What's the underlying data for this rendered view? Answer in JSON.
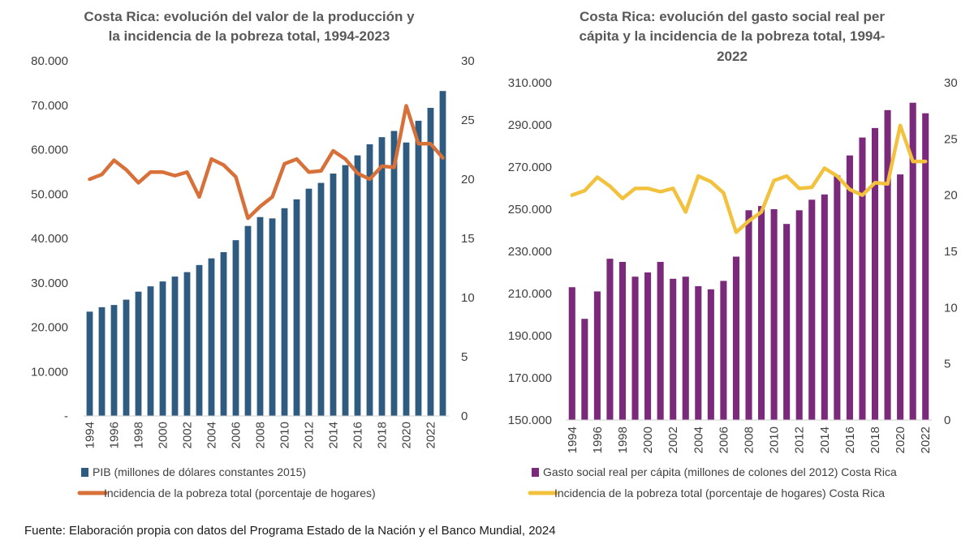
{
  "colors": {
    "gdp_bar": "#2E5B7F",
    "poverty_line_1": "#D8703A",
    "social_bar": "#7B2A7B",
    "poverty_line_2": "#F2C13D",
    "text": "#404040",
    "title": "#595959"
  },
  "chart_data": [
    {
      "type": "bar",
      "title": [
        "Costa Rica: evolución del valor de la producción y",
        "la incidencia de la pobreza total, 1994-2023"
      ],
      "x": [
        1994,
        1995,
        1996,
        1997,
        1998,
        1999,
        2000,
        2001,
        2002,
        2003,
        2004,
        2005,
        2006,
        2007,
        2008,
        2009,
        2010,
        2011,
        2012,
        2013,
        2014,
        2015,
        2016,
        2017,
        2018,
        2019,
        2020,
        2021,
        2022,
        2023
      ],
      "x_tick_labels": [
        "1994",
        "1996",
        "1998",
        "2000",
        "2002",
        "2004",
        "2006",
        "2008",
        "2010",
        "2012",
        "2014",
        "2016",
        "2018",
        "2020",
        "2022"
      ],
      "ylim": [
        0,
        80000
      ],
      "y_tick_labels": [
        "-",
        "10.000",
        "20.000",
        "30.000",
        "40.000",
        "50.000",
        "60.000",
        "70.000",
        "80.000"
      ],
      "y2lim": [
        0,
        30
      ],
      "y2_tick_labels": [
        "0",
        "5",
        "10",
        "15",
        "20",
        "25",
        "30"
      ],
      "legend_position": "bottom",
      "series": [
        {
          "name": "PIB (millones de dólares constantes 2015)",
          "kind": "bar",
          "axis": "left",
          "values": [
            23500,
            24500,
            25000,
            26200,
            28000,
            29200,
            30300,
            31400,
            32400,
            34000,
            35500,
            36900,
            39600,
            42800,
            44800,
            44500,
            46800,
            48800,
            51200,
            52500,
            54600,
            56500,
            58700,
            61200,
            62800,
            64200,
            61600,
            66500,
            69400,
            73200
          ]
        },
        {
          "name": "Incidencia de la pobreza total (porcentaje de hogares)",
          "kind": "line",
          "axis": "right",
          "values": [
            20.0,
            20.4,
            21.6,
            20.8,
            19.7,
            20.6,
            20.6,
            20.3,
            20.6,
            18.5,
            21.7,
            21.2,
            20.2,
            16.7,
            17.7,
            18.5,
            21.3,
            21.7,
            20.6,
            20.7,
            22.4,
            21.7,
            20.5,
            20.0,
            21.1,
            21.0,
            26.2,
            23.0,
            23.0,
            21.8
          ]
        }
      ]
    },
    {
      "type": "bar",
      "title": [
        "Costa Rica: evolución del gasto social real per",
        "cápita y la incidencia de la pobreza total, 1994-",
        "2022"
      ],
      "x": [
        1994,
        1995,
        1996,
        1997,
        1998,
        1999,
        2000,
        2001,
        2002,
        2003,
        2004,
        2005,
        2006,
        2007,
        2008,
        2009,
        2010,
        2011,
        2012,
        2013,
        2014,
        2015,
        2016,
        2017,
        2018,
        2019,
        2020,
        2021,
        2022
      ],
      "x_tick_labels": [
        "1994",
        "1996",
        "1998",
        "2000",
        "2002",
        "2004",
        "2006",
        "2008",
        "2010",
        "2012",
        "2014",
        "2016",
        "2018",
        "2020",
        "2022"
      ],
      "ylim": [
        150000,
        310000
      ],
      "y_tick_labels": [
        "150.000",
        "170.000",
        "190.000",
        "210.000",
        "230.000",
        "250.000",
        "270.000",
        "290.000",
        "310.000"
      ],
      "y2lim": [
        0,
        30
      ],
      "y2_tick_labels": [
        "0",
        "5",
        "10",
        "15",
        "20",
        "25",
        "30"
      ],
      "legend_position": "bottom",
      "series": [
        {
          "name": "Gasto social real per cápita (millones de colones del 2012) Costa Rica",
          "kind": "bar",
          "axis": "left",
          "values": [
            213000,
            198000,
            211000,
            226500,
            225000,
            218000,
            220000,
            225000,
            217000,
            218000,
            213500,
            212000,
            216000,
            227500,
            249500,
            251500,
            250000,
            243000,
            249500,
            254500,
            257000,
            266000,
            275500,
            284000,
            288500,
            297000,
            266500,
            300500,
            295500
          ]
        },
        {
          "name": "Incidencia de la pobreza total (porcentaje de hogares) Costa Rica",
          "kind": "line",
          "axis": "right",
          "values": [
            20.0,
            20.4,
            21.6,
            20.8,
            19.7,
            20.6,
            20.6,
            20.3,
            20.6,
            18.5,
            21.7,
            21.2,
            20.2,
            16.7,
            17.7,
            18.5,
            21.3,
            21.7,
            20.6,
            20.7,
            22.4,
            21.7,
            20.5,
            20.0,
            21.1,
            21.0,
            26.2,
            23.0,
            23.0
          ]
        }
      ]
    }
  ],
  "footer": {
    "source": "Fuente: Elaboración propia con datos del Programa Estado de la Nación y el Banco Mundial, 2024"
  }
}
